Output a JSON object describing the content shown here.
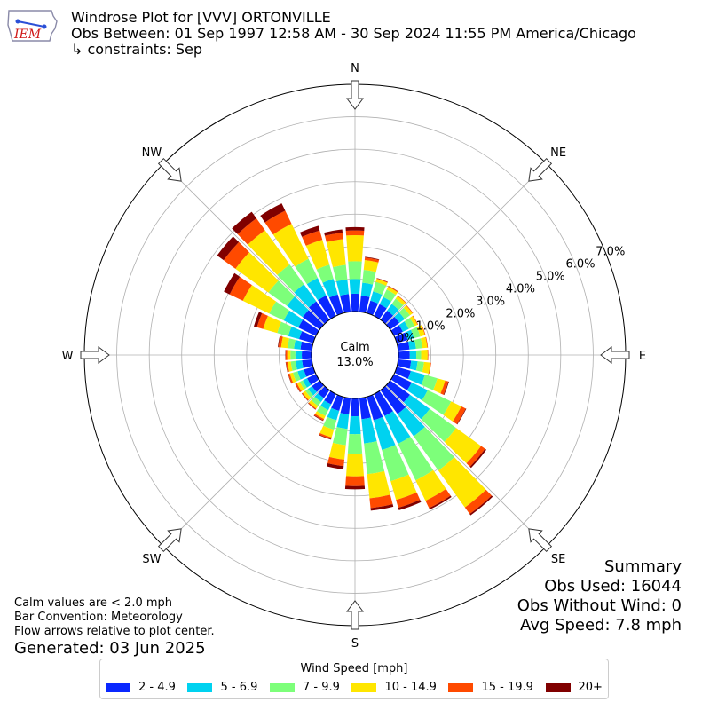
{
  "header": {
    "title": "Windrose Plot for [VVV] ORTONVILLE",
    "subtitle": "Obs Between: 01 Sep 1997 12:58 AM - 30 Sep 2024 11:55 PM America/Chicago",
    "constraints": "↳ constraints: Sep",
    "logo_text": "IEM"
  },
  "notes": {
    "calm_note": "Calm values are < 2.0 mph",
    "bar_convention": "Bar Convention: Meteorology",
    "flow_note": "Flow arrows relative to plot center.",
    "generated": "Generated: 03 Jun 2025"
  },
  "summary": {
    "title": "Summary",
    "obs_used": "Obs Used: 16044",
    "obs_without_wind": "Obs Without Wind: 0",
    "avg_speed": "Avg Speed: 7.8 mph"
  },
  "legend": {
    "title": "Wind Speed [mph]",
    "items": [
      {
        "label": "2 - 4.9",
        "color": "#0a28ff"
      },
      {
        "label": "5 - 6.9",
        "color": "#00d2f0"
      },
      {
        "label": "7 - 9.9",
        "color": "#7dff7a"
      },
      {
        "label": "10 - 14.9",
        "color": "#ffe600"
      },
      {
        "label": "15 - 19.9",
        "color": "#ff4a00"
      },
      {
        "label": "20+",
        "color": "#800000"
      }
    ]
  },
  "chart_data": {
    "type": "windrose",
    "calm_label": "Calm",
    "calm_value": "13.0%",
    "radial_ticks": [
      "0.0%",
      "1.0%",
      "2.0%",
      "3.0%",
      "4.0%",
      "5.0%",
      "6.0%",
      "7.0%"
    ],
    "radial_max": 7.0,
    "compass_labels": [
      {
        "label": "N",
        "angle": 0
      },
      {
        "label": "NE",
        "angle": 45
      },
      {
        "label": "E",
        "angle": 90
      },
      {
        "label": "SE",
        "angle": 135
      },
      {
        "label": "S",
        "angle": 180
      },
      {
        "label": "SW",
        "angle": 225
      },
      {
        "label": "W",
        "angle": 270
      },
      {
        "label": "NW",
        "angle": 315
      }
    ],
    "speed_bins": [
      "2 - 4.9",
      "5 - 6.9",
      "7 - 9.9",
      "10 - 14.9",
      "15 - 19.9",
      "20+"
    ],
    "directions": [
      0,
      10,
      20,
      30,
      40,
      50,
      60,
      70,
      80,
      90,
      100,
      110,
      120,
      130,
      140,
      150,
      160,
      170,
      180,
      190,
      200,
      210,
      220,
      230,
      240,
      250,
      260,
      270,
      280,
      290,
      300,
      310,
      320,
      330,
      340,
      350
    ],
    "frequencies": [
      [
        0.55,
        0.45,
        0.55,
        0.8,
        0.15,
        0.1
      ],
      [
        0.5,
        0.4,
        0.4,
        0.3,
        0.08,
        0.02
      ],
      [
        0.4,
        0.3,
        0.3,
        0.1,
        0.02,
        0.01
      ],
      [
        0.4,
        0.25,
        0.25,
        0.1,
        0.02,
        0.01
      ],
      [
        0.35,
        0.25,
        0.2,
        0.1,
        0.02,
        0.0
      ],
      [
        0.35,
        0.2,
        0.2,
        0.1,
        0.02,
        0.0
      ],
      [
        0.3,
        0.2,
        0.2,
        0.1,
        0.02,
        0.0
      ],
      [
        0.35,
        0.2,
        0.2,
        0.15,
        0.02,
        0.0
      ],
      [
        0.35,
        0.2,
        0.2,
        0.15,
        0.02,
        0.0
      ],
      [
        0.35,
        0.2,
        0.15,
        0.2,
        0.02,
        0.0
      ],
      [
        0.4,
        0.2,
        0.2,
        0.2,
        0.02,
        0.0
      ],
      [
        0.45,
        0.45,
        0.4,
        0.25,
        0.1,
        0.02
      ],
      [
        0.6,
        0.55,
        0.8,
        0.35,
        0.15,
        0.02
      ],
      [
        0.75,
        0.75,
        1.0,
        0.95,
        0.15,
        0.05
      ],
      [
        0.9,
        0.85,
        1.3,
        1.4,
        0.25,
        0.05
      ],
      [
        0.75,
        0.95,
        1.25,
        0.7,
        0.25,
        0.05
      ],
      [
        0.75,
        0.95,
        1.0,
        0.6,
        0.25,
        0.08
      ],
      [
        0.65,
        0.75,
        0.95,
        0.75,
        0.3,
        0.08
      ],
      [
        0.55,
        0.55,
        0.6,
        0.7,
        0.3,
        0.1
      ],
      [
        0.5,
        0.45,
        0.5,
        0.45,
        0.2,
        0.1
      ],
      [
        0.45,
        0.3,
        0.3,
        0.25,
        0.05,
        0.02
      ],
      [
        0.35,
        0.2,
        0.2,
        0.1,
        0.05,
        0.02
      ],
      [
        0.3,
        0.15,
        0.15,
        0.1,
        0.03,
        0.01
      ],
      [
        0.3,
        0.15,
        0.1,
        0.1,
        0.03,
        0.01
      ],
      [
        0.3,
        0.15,
        0.1,
        0.1,
        0.05,
        0.01
      ],
      [
        0.3,
        0.2,
        0.15,
        0.1,
        0.05,
        0.01
      ],
      [
        0.3,
        0.2,
        0.15,
        0.1,
        0.05,
        0.01
      ],
      [
        0.3,
        0.2,
        0.15,
        0.1,
        0.05,
        0.01
      ],
      [
        0.35,
        0.2,
        0.2,
        0.2,
        0.08,
        0.02
      ],
      [
        0.45,
        0.35,
        0.35,
        0.45,
        0.2,
        0.1
      ],
      [
        0.6,
        0.5,
        0.5,
        0.9,
        0.45,
        0.2
      ],
      [
        0.65,
        0.6,
        0.7,
        1.25,
        0.45,
        0.25
      ],
      [
        0.7,
        0.65,
        0.75,
        1.3,
        0.45,
        0.25
      ],
      [
        0.7,
        0.6,
        0.65,
        1.2,
        0.45,
        0.25
      ],
      [
        0.6,
        0.5,
        0.45,
        0.8,
        0.3,
        0.15
      ],
      [
        0.55,
        0.45,
        0.45,
        0.8,
        0.2,
        0.1
      ]
    ]
  }
}
